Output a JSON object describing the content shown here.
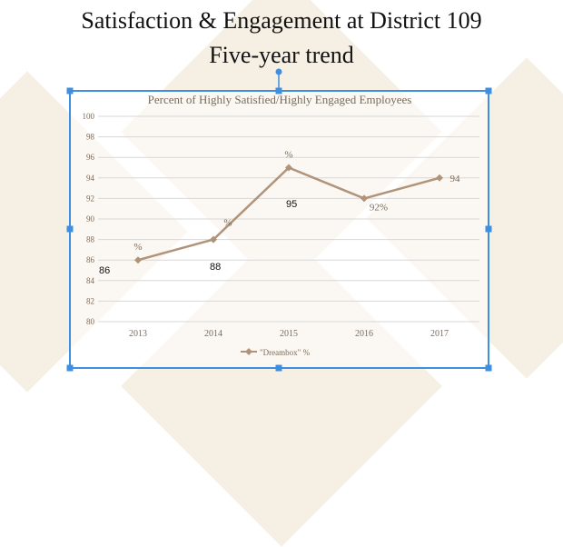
{
  "slide": {
    "title_line1": "Satisfaction & Engagement at District 109",
    "title_line2": "Five-year trend"
  },
  "colors": {
    "line": "#b09378",
    "selection": "#3e8fe0",
    "background_shape": "#f6efe4",
    "grid": "#d7d7d7",
    "chart_text": "#7a6a5a"
  },
  "chart_data": {
    "type": "line",
    "title": "Percent of Highly Satisfied/Highly Engaged Employees",
    "categories": [
      "2013",
      "2014",
      "2015",
      "2016",
      "2017"
    ],
    "series": [
      {
        "name": "\"Dreambox\" %",
        "values": [
          86,
          88,
          95,
          92,
          94
        ]
      }
    ],
    "ylim": [
      80,
      100
    ],
    "yticks": [
      "80",
      "82",
      "84",
      "86",
      "88",
      "90",
      "92",
      "94",
      "96",
      "98",
      "100"
    ],
    "grid": true,
    "legend": "bottom",
    "point_labels": [
      "%",
      "%",
      "%",
      "92%",
      "94"
    ],
    "annotations": [
      "86",
      "88",
      "95"
    ]
  }
}
